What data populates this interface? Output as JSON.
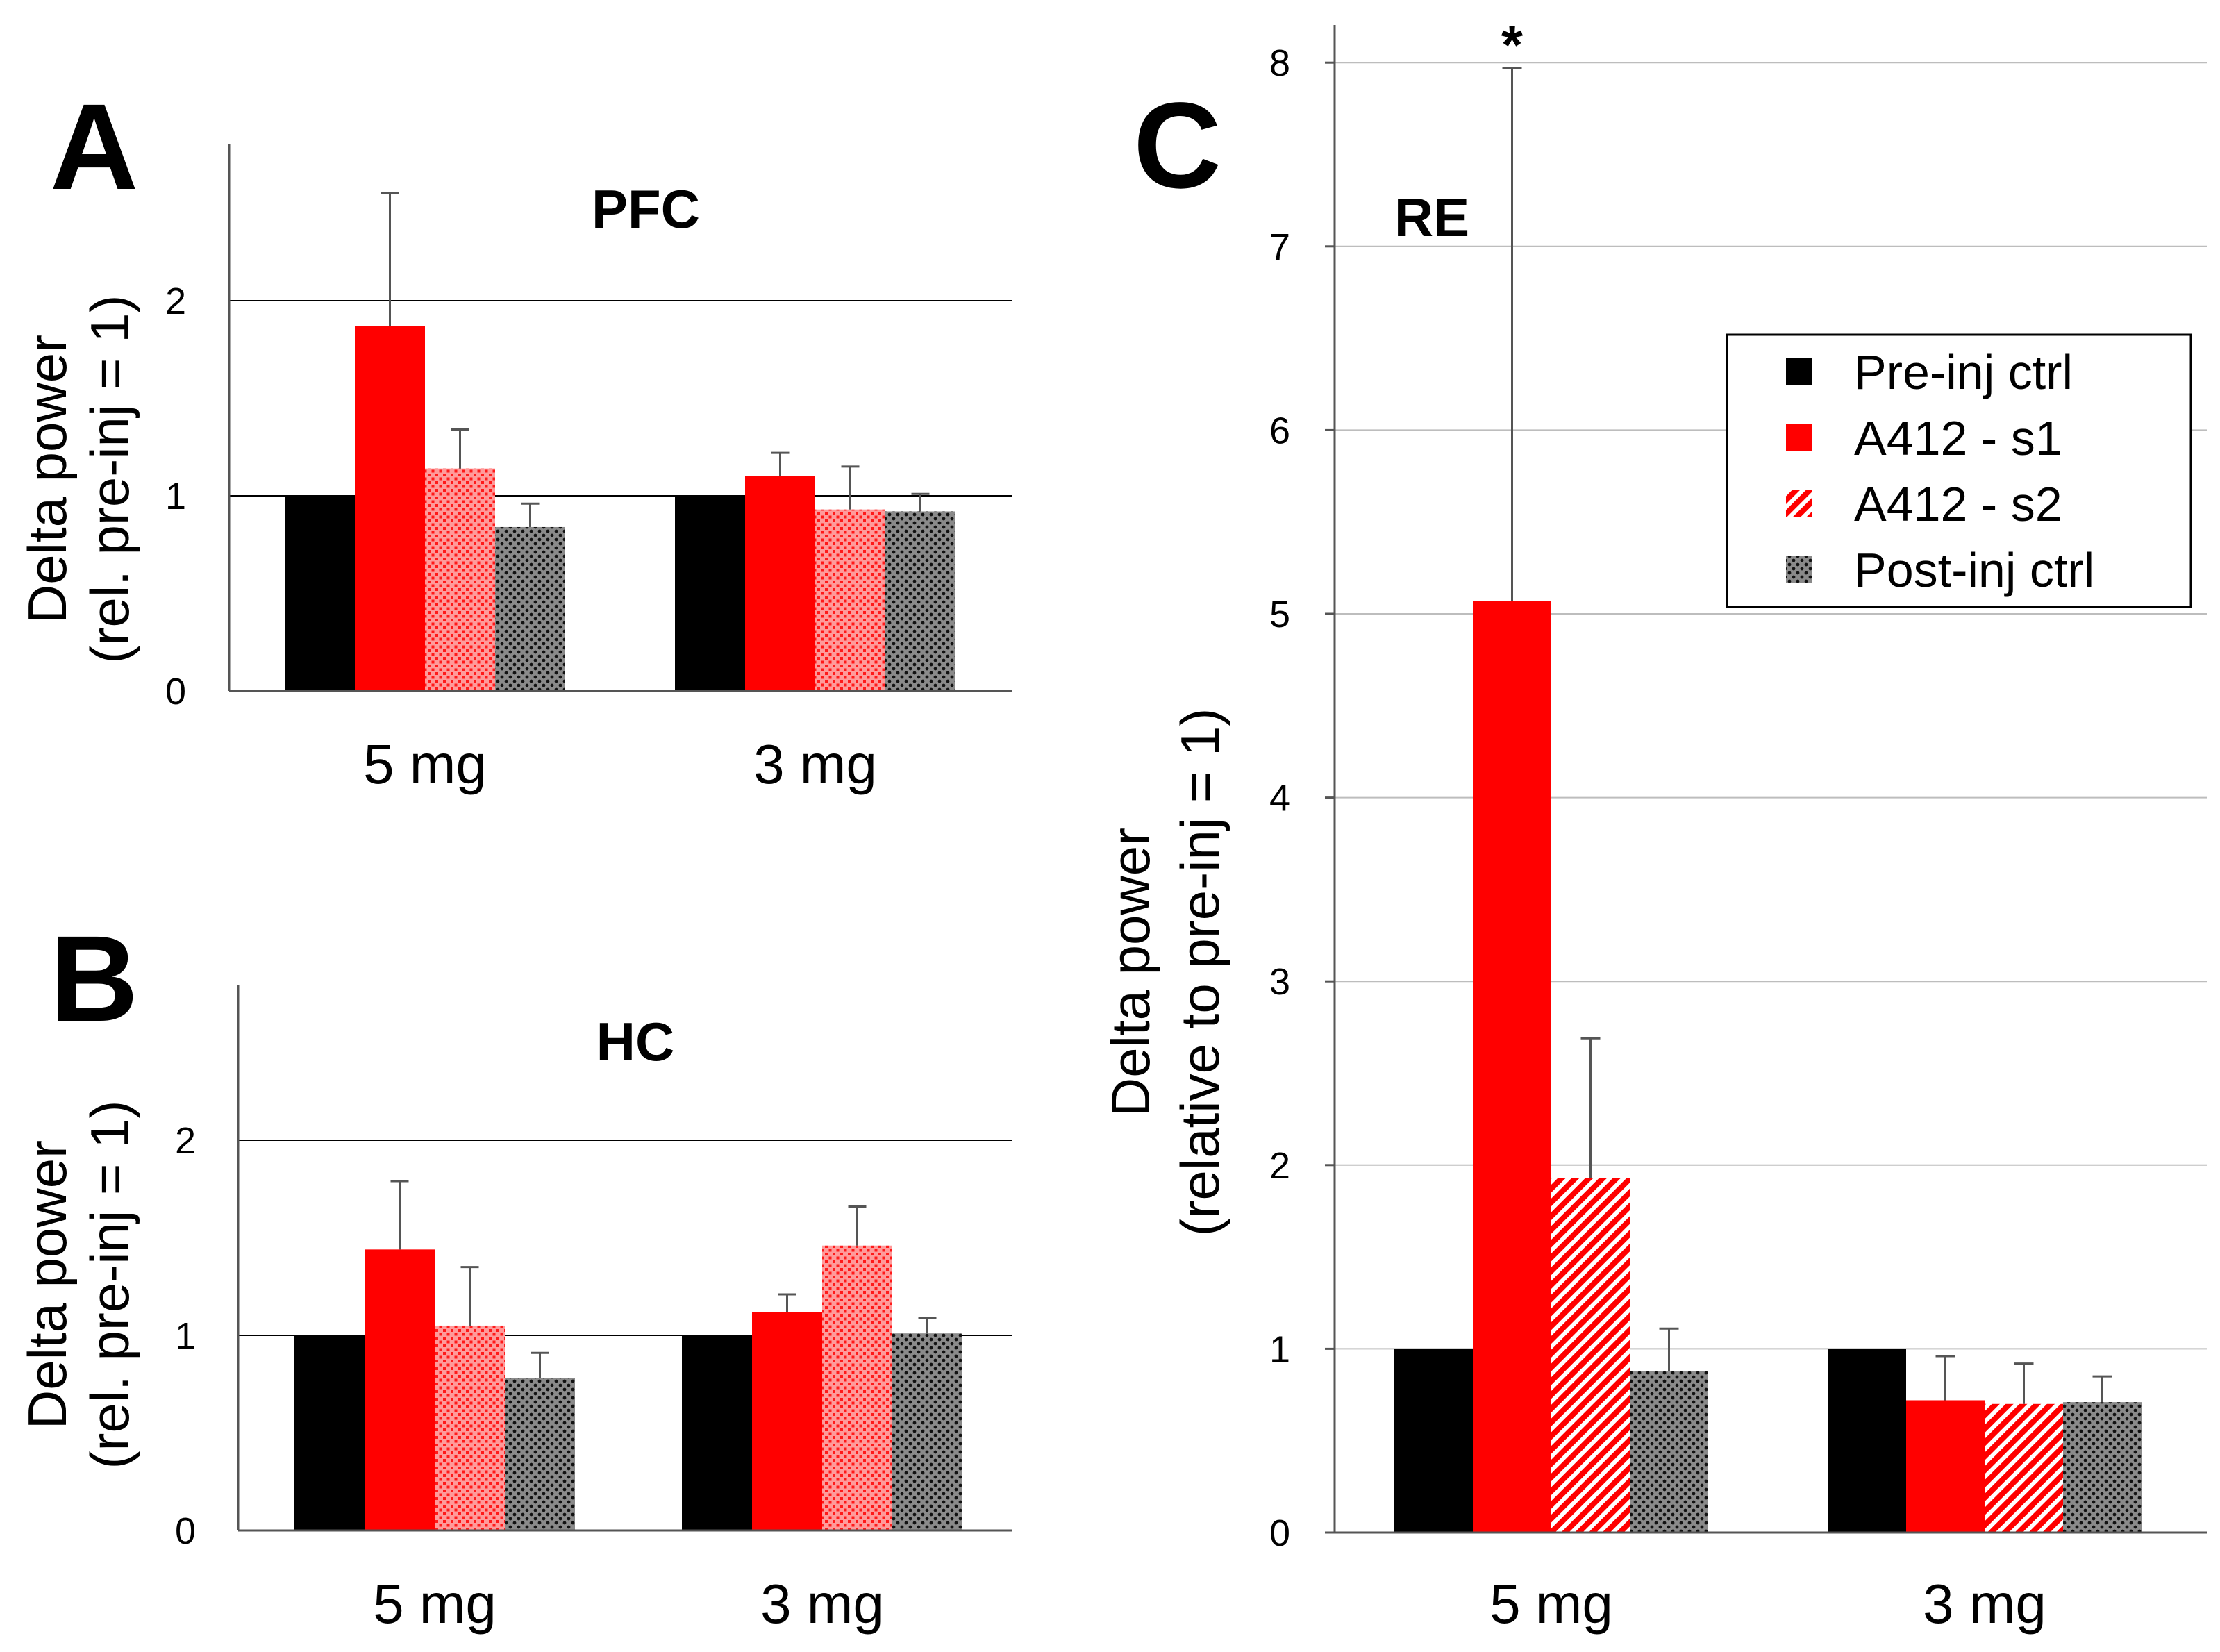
{
  "colors": {
    "pre_inj": "#000000",
    "s1": "#ff0000",
    "s2": "#ff3030",
    "post_inj": "#404040",
    "grid": "#aaaaaa"
  },
  "legend": [
    {
      "name": "Pre-inj ctrl",
      "pattern": "pre_inj"
    },
    {
      "name": "A412 - s1",
      "pattern": "s1"
    },
    {
      "name": "A412 - s2",
      "pattern": "s2"
    },
    {
      "name": "Post-inj ctrl",
      "pattern": "post_inj"
    }
  ],
  "chart_data": [
    {
      "type": "bar",
      "panel": "A",
      "title": "PFC",
      "ylabel_line1": "Delta power",
      "ylabel_line2": "(rel. pre-inj = 1)",
      "xlabel": "",
      "categories": [
        "5 mg",
        "3 mg"
      ],
      "ylim": [
        0,
        2.8
      ],
      "yticks": [
        0,
        1,
        2
      ],
      "grid": true,
      "series": [
        {
          "name": "Pre-inj ctrl",
          "values": [
            1.0,
            1.0
          ],
          "errors": [
            0,
            0
          ]
        },
        {
          "name": "A412 - s1",
          "values": [
            1.87,
            1.1
          ],
          "errors": [
            0.68,
            0.12
          ]
        },
        {
          "name": "A412 - s2",
          "values": [
            1.14,
            0.93
          ],
          "errors": [
            0.2,
            0.22
          ]
        },
        {
          "name": "Post-inj ctrl",
          "values": [
            0.84,
            0.92
          ],
          "errors": [
            0.12,
            0.09
          ]
        }
      ]
    },
    {
      "type": "bar",
      "panel": "B",
      "title": "HC",
      "ylabel_line1": "Delta power",
      "ylabel_line2": "(rel. pre-inj = 1)",
      "xlabel": "",
      "categories": [
        "5 mg",
        "3 mg"
      ],
      "ylim": [
        0,
        2.8
      ],
      "yticks": [
        0,
        1,
        2
      ],
      "grid": true,
      "series": [
        {
          "name": "Pre-inj ctrl",
          "values": [
            1.0,
            1.0
          ],
          "errors": [
            0,
            0
          ]
        },
        {
          "name": "A412 - s1",
          "values": [
            1.44,
            1.12
          ],
          "errors": [
            0.35,
            0.09
          ]
        },
        {
          "name": "A412 - s2",
          "values": [
            1.05,
            1.46
          ],
          "errors": [
            0.3,
            0.2
          ]
        },
        {
          "name": "Post-inj ctrl",
          "values": [
            0.78,
            1.01
          ],
          "errors": [
            0.13,
            0.08
          ]
        }
      ]
    },
    {
      "type": "bar",
      "panel": "C",
      "title": "RE",
      "ylabel_line1": "Delta power",
      "ylabel_line2": "(relative to pre-inj = 1)",
      "xlabel": "",
      "categories": [
        "5 mg",
        "3 mg"
      ],
      "ylim": [
        0,
        8.2
      ],
      "yticks": [
        0,
        1,
        2,
        3,
        4,
        5,
        6,
        7,
        8
      ],
      "grid": true,
      "legend_position": "top-right",
      "annotation": {
        "text": "*",
        "category": "5 mg",
        "series": "A412 - s1"
      },
      "series": [
        {
          "name": "Pre-inj ctrl",
          "values": [
            1.0,
            1.0
          ],
          "errors": [
            0,
            0
          ]
        },
        {
          "name": "A412 - s1",
          "values": [
            5.07,
            0.72
          ],
          "errors": [
            2.9,
            0.24
          ]
        },
        {
          "name": "A412 - s2",
          "values": [
            1.93,
            0.7
          ],
          "errors": [
            0.76,
            0.22
          ]
        },
        {
          "name": "Post-inj ctrl",
          "values": [
            0.88,
            0.71
          ],
          "errors": [
            0.23,
            0.14
          ]
        }
      ]
    }
  ]
}
